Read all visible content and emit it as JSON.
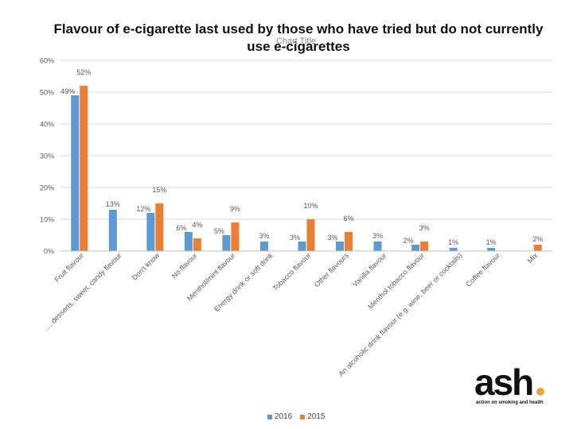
{
  "title": "Flavour of e-cigarette last used by those who have tried but do not currently use e-cigarettes",
  "chart_title": "Chart Title",
  "logo": {
    "word": "ash",
    "tagline": "action on smoking and health",
    "dot_color": "#f0a030"
  },
  "colors": {
    "series_2016": "#5b9bd5",
    "series_2015": "#ed7d31",
    "grid": "#d9d9d9",
    "axis_text": "#595959"
  },
  "chart_data": {
    "type": "bar",
    "title": "Flavour of e-cigarette last used by those who have tried but do not currently use e-cigarettes",
    "ylim": [
      0,
      60
    ],
    "y_ticks": [
      "0%",
      "10%",
      "20%",
      "30%",
      "40%",
      "50%",
      "60%"
    ],
    "y_tick_values": [
      0,
      10,
      20,
      30,
      40,
      50,
      60
    ],
    "grid": true,
    "legend": "bottom",
    "categories": [
      "Fruit flavour",
      "…, desserts, sweet, candy flavour",
      "Don't know",
      "No flavour",
      "Menthol/mint flavour",
      "Energy drink or soft drink",
      "Tobacco flavour",
      "Other flavours",
      "Vanilla flavour",
      "Menthol tobacco flavour",
      "An alcoholic drink flavour (e.g. wine, beer or cocktails)",
      "Coffee flavour",
      "Mix"
    ],
    "series": [
      {
        "name": "2016",
        "values": [
          49,
          13,
          12,
          6,
          5,
          3,
          3,
          3,
          3,
          2,
          1,
          1,
          0
        ],
        "labels": [
          "49%",
          "13%",
          "12%",
          "6%",
          "5%",
          "3%",
          "3%",
          "3%",
          "3%",
          "2%",
          "1%",
          "1%",
          ""
        ]
      },
      {
        "name": "2015",
        "values": [
          52,
          null,
          15,
          4,
          9,
          null,
          10,
          6,
          null,
          3,
          null,
          null,
          2
        ],
        "labels": [
          "52%",
          "",
          "15%",
          "4%",
          "9%",
          "",
          "10%",
          "6%",
          "",
          "3%",
          "",
          "",
          "2%"
        ]
      }
    ]
  }
}
